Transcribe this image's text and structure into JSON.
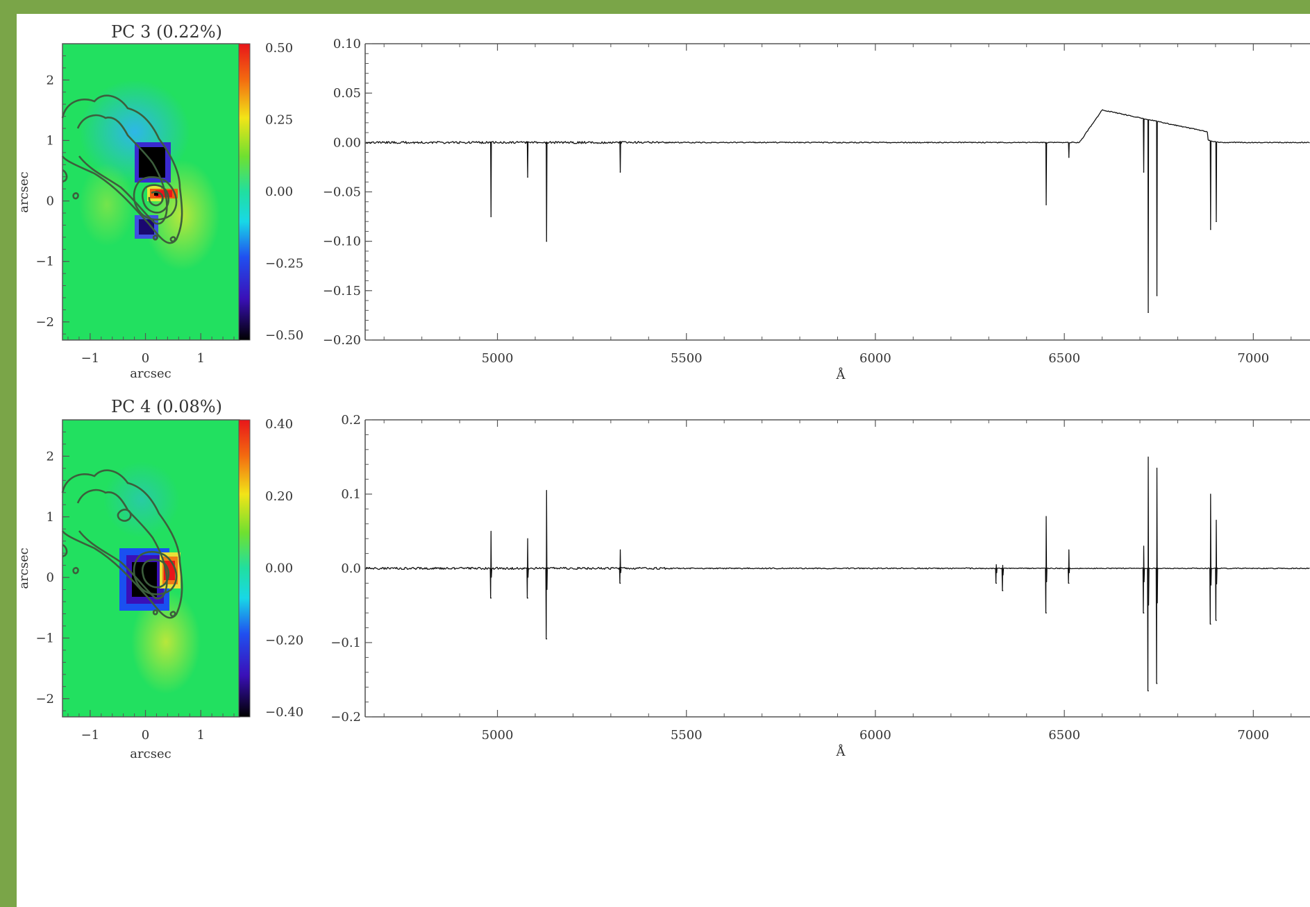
{
  "page": {
    "background_color": "#7aa548",
    "panel_color": "#ffffff"
  },
  "chart_data": [
    {
      "type": "heatmap",
      "title": "PC 3 (0.22%)",
      "xlabel": "arcsec",
      "ylabel": "arcsec",
      "xlim": [
        -1.5,
        1.7
      ],
      "ylim": [
        -2.3,
        2.6
      ],
      "xticks": [
        "−1",
        "0",
        "1"
      ],
      "yticks": [
        "2",
        "1",
        "0",
        "−1",
        "−2"
      ],
      "colorbar": {
        "range": [
          -0.5,
          0.5
        ],
        "ticks": [
          "0.50",
          "0.25",
          "0.00",
          "−0.25",
          "−0.50"
        ]
      },
      "features": [
        {
          "kind": "negative-blob",
          "x": 0.15,
          "y": 0.62,
          "value": -0.5
        },
        {
          "kind": "negative-blob",
          "x": 0.0,
          "y": -0.27,
          "value": -0.3
        },
        {
          "kind": "positive-blob",
          "x": 0.3,
          "y": 0.1,
          "value": 0.45
        }
      ],
      "colors": {
        "background": "#22e060",
        "contour": "#3c5e3c"
      }
    },
    {
      "type": "line",
      "xlabel": "Å",
      "xlim": [
        4650,
        7150
      ],
      "ylim": [
        -0.2,
        0.1
      ],
      "xticks": [
        "5000",
        "5500",
        "6000",
        "6500",
        "7000"
      ],
      "yticks": [
        "0.10",
        "0.05",
        "0.00",
        "−0.05",
        "−0.10",
        "−0.15",
        "−0.20"
      ],
      "baseline": 0.0,
      "lines": [
        {
          "x": 4983,
          "y": -0.075
        },
        {
          "x": 5080,
          "y": -0.035
        },
        {
          "x": 5130,
          "y": -0.1
        },
        {
          "x": 5325,
          "y": -0.03
        },
        {
          "x": 6452,
          "y": -0.063
        },
        {
          "x": 6512,
          "y": -0.015
        },
        {
          "x": 6710,
          "y": -0.03
        },
        {
          "x": 6722,
          "y": -0.172
        },
        {
          "x": 6745,
          "y": -0.155
        },
        {
          "x": 6887,
          "y": -0.088
        },
        {
          "x": 6902,
          "y": -0.08
        }
      ],
      "bump": {
        "from": 6540,
        "peak_x": 6600,
        "peak_y": 0.033,
        "to": 6910
      },
      "colors": {
        "line": "#111111",
        "axis": "#333333"
      }
    },
    {
      "type": "heatmap",
      "title": "PC 4 (0.08%)",
      "xlabel": "arcsec",
      "ylabel": "arcsec",
      "xlim": [
        -1.5,
        1.7
      ],
      "ylim": [
        -2.3,
        2.6
      ],
      "xticks": [
        "−1",
        "0",
        "1"
      ],
      "yticks": [
        "2",
        "1",
        "0",
        "−1",
        "−2"
      ],
      "colorbar": {
        "range": [
          -0.4,
          0.4
        ],
        "ticks": [
          "0.40",
          "0.20",
          "0.00",
          "−0.20",
          "−0.40"
        ]
      },
      "features": [
        {
          "kind": "negative-blob",
          "x": -0.1,
          "y": 0.03,
          "value": -0.4
        },
        {
          "kind": "positive-blob",
          "x": 0.35,
          "y": 0.3,
          "value": 0.38
        }
      ],
      "colors": {
        "background": "#22e060",
        "contour": "#3c5e3c"
      }
    },
    {
      "type": "line",
      "xlabel": "Å",
      "xlim": [
        4650,
        7150
      ],
      "ylim": [
        -0.2,
        0.2
      ],
      "xticks": [
        "5000",
        "5500",
        "6000",
        "6500",
        "7000"
      ],
      "yticks": [
        "0.2",
        "0.1",
        "0.0",
        "−0.1",
        "−0.2"
      ],
      "baseline": 0.0,
      "lines": [
        {
          "x": 4983,
          "hi": 0.05,
          "lo": -0.04
        },
        {
          "x": 5080,
          "hi": 0.04,
          "lo": -0.04
        },
        {
          "x": 5130,
          "hi": 0.105,
          "lo": -0.095
        },
        {
          "x": 5325,
          "hi": 0.025,
          "lo": -0.02
        },
        {
          "x": 6320,
          "hi": 0.005,
          "lo": -0.02
        },
        {
          "x": 6337,
          "hi": 0.004,
          "lo": -0.03
        },
        {
          "x": 6452,
          "hi": 0.07,
          "lo": -0.06
        },
        {
          "x": 6512,
          "hi": 0.025,
          "lo": -0.02
        },
        {
          "x": 6710,
          "hi": 0.03,
          "lo": -0.06
        },
        {
          "x": 6722,
          "hi": 0.15,
          "lo": -0.165
        },
        {
          "x": 6745,
          "hi": 0.135,
          "lo": -0.155
        },
        {
          "x": 6887,
          "hi": 0.1,
          "lo": -0.075
        },
        {
          "x": 6902,
          "hi": 0.065,
          "lo": -0.07
        }
      ],
      "colors": {
        "line": "#111111",
        "axis": "#333333"
      }
    }
  ]
}
